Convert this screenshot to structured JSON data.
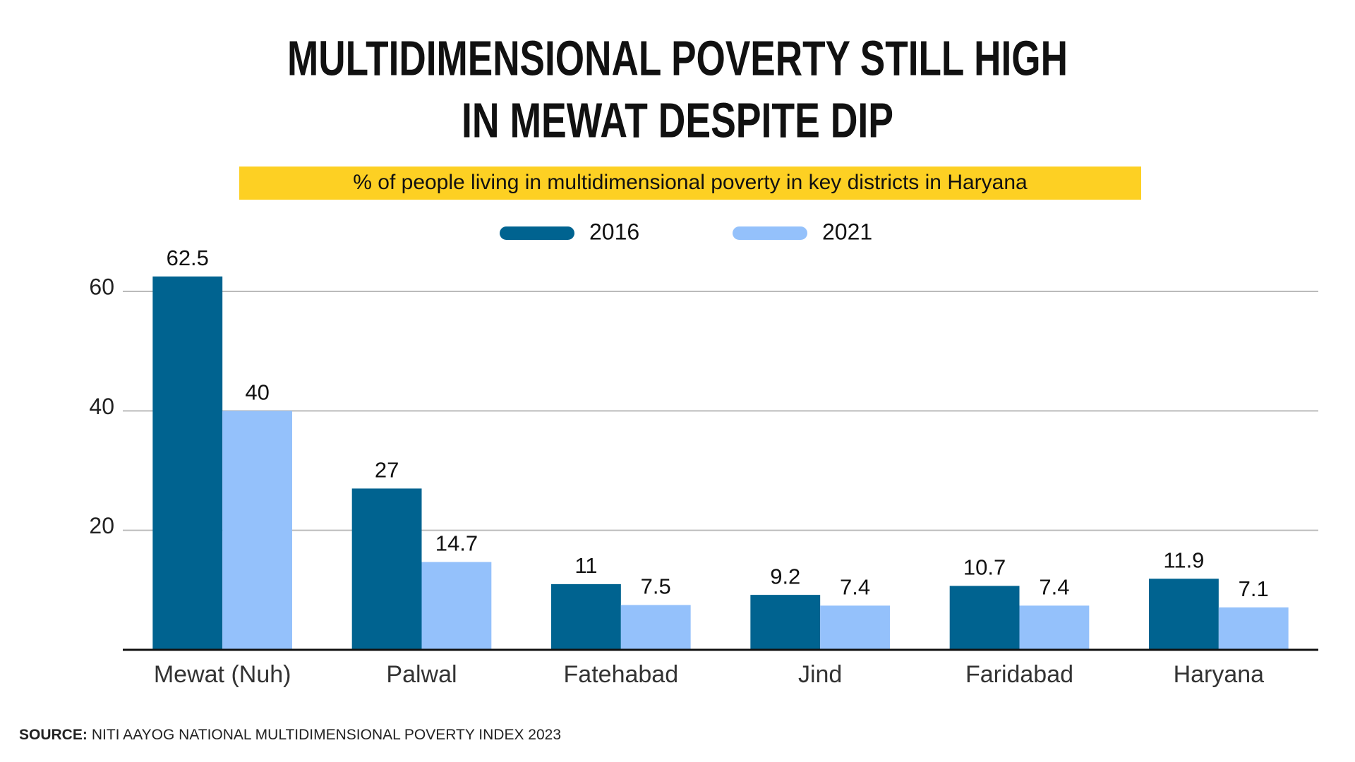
{
  "chart_data": {
    "type": "bar",
    "title": [
      "MULTIDIMENSIONAL POVERTY STILL HIGH",
      "IN MEWAT DESPITE DIP"
    ],
    "subtitle": "% of people living in multidimensional poverty in key districts in Haryana",
    "categories": [
      "Mewat (Nuh)",
      "Palwal",
      "Fatehabad",
      "Jind",
      "Faridabad",
      "Haryana"
    ],
    "series": [
      {
        "name": "2016",
        "color": "#006390",
        "values": [
          62.5,
          27,
          11,
          9.2,
          10.7,
          11.9
        ]
      },
      {
        "name": "2021",
        "color": "#94c1fb",
        "values": [
          40,
          14.7,
          7.5,
          7.4,
          7.4,
          7.1
        ]
      }
    ],
    "ylim": [
      0,
      60
    ],
    "yticks": [
      20,
      40,
      60
    ],
    "grid": true,
    "source_label": "SOURCE:",
    "source": "NITI AAYOG NATIONAL MULTIDIMENSIONAL POVERTY INDEX 2023"
  }
}
